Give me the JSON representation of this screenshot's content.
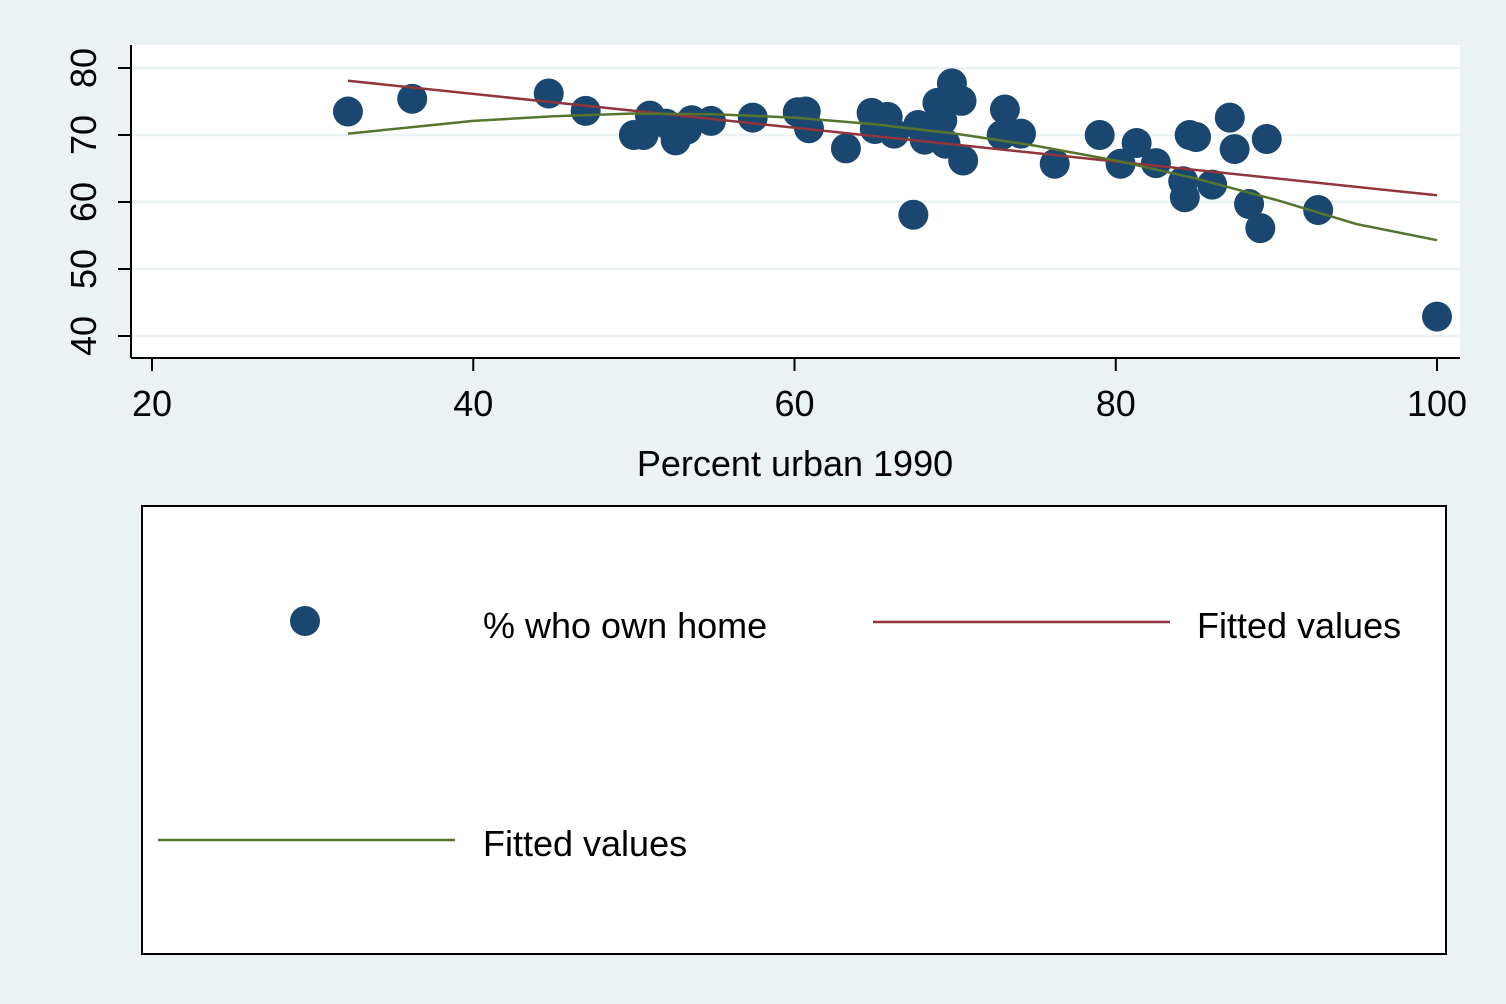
{
  "chart_data": {
    "type": "scatter",
    "title": "",
    "xlabel": "Percent urban 1990",
    "ylabel": "",
    "xlim": [
      20,
      100
    ],
    "ylim": [
      40,
      80
    ],
    "x_ticks": [
      20,
      40,
      60,
      80,
      100
    ],
    "y_ticks": [
      40,
      50,
      60,
      70,
      80
    ],
    "grid": "horizontal",
    "legend_position": "bottom",
    "series": [
      {
        "name": "% who own home",
        "kind": "scatter",
        "color": "#1a476f",
        "points": [
          [
            32.2,
            73.5
          ],
          [
            36.2,
            75.4
          ],
          [
            44.7,
            76.2
          ],
          [
            47.0,
            73.6
          ],
          [
            50.0,
            70.0
          ],
          [
            50.6,
            70.0
          ],
          [
            51.0,
            72.9
          ],
          [
            52.0,
            71.7
          ],
          [
            52.6,
            69.2
          ],
          [
            53.3,
            70.8
          ],
          [
            53.6,
            72.2
          ],
          [
            54.8,
            72.1
          ],
          [
            57.4,
            72.6
          ],
          [
            60.2,
            73.4
          ],
          [
            60.7,
            73.5
          ],
          [
            60.9,
            71.0
          ],
          [
            63.2,
            68.0
          ],
          [
            64.8,
            73.3
          ],
          [
            65.0,
            70.9
          ],
          [
            65.8,
            72.7
          ],
          [
            66.2,
            70.2
          ],
          [
            67.4,
            58.1
          ],
          [
            67.7,
            71.5
          ],
          [
            68.1,
            69.3
          ],
          [
            68.9,
            74.8
          ],
          [
            69.2,
            72.2
          ],
          [
            69.4,
            68.7
          ],
          [
            69.8,
            77.7
          ],
          [
            70.4,
            75.1
          ],
          [
            70.5,
            66.2
          ],
          [
            72.9,
            70.0
          ],
          [
            73.1,
            73.8
          ],
          [
            74.1,
            70.2
          ],
          [
            76.2,
            65.7
          ],
          [
            79.0,
            70.0
          ],
          [
            80.3,
            65.7
          ],
          [
            81.3,
            68.8
          ],
          [
            82.5,
            65.8
          ],
          [
            84.2,
            63.1
          ],
          [
            84.3,
            60.7
          ],
          [
            84.6,
            70.0
          ],
          [
            85.0,
            69.7
          ],
          [
            86.0,
            62.6
          ],
          [
            87.1,
            72.6
          ],
          [
            87.4,
            67.9
          ],
          [
            88.3,
            59.7
          ],
          [
            89.0,
            56.1
          ],
          [
            89.4,
            69.4
          ],
          [
            92.6,
            58.8
          ],
          [
            100.0,
            42.9
          ]
        ]
      },
      {
        "name": "Fitted values",
        "kind": "line",
        "color": "#90353b",
        "x": [
          32.2,
          100.0
        ],
        "y": [
          78.1,
          61.0
        ]
      },
      {
        "name": "Fitted values",
        "kind": "line",
        "color": "#55752f",
        "x": [
          32.2,
          40.0,
          45.0,
          50.0,
          55.0,
          60.0,
          65.0,
          70.0,
          75.0,
          80.0,
          85.0,
          90.0,
          95.0,
          100.0
        ],
        "y": [
          70.2,
          72.1,
          72.8,
          73.2,
          73.1,
          72.6,
          71.6,
          70.2,
          68.4,
          66.2,
          63.5,
          60.3,
          56.7,
          54.3
        ]
      }
    ]
  }
}
